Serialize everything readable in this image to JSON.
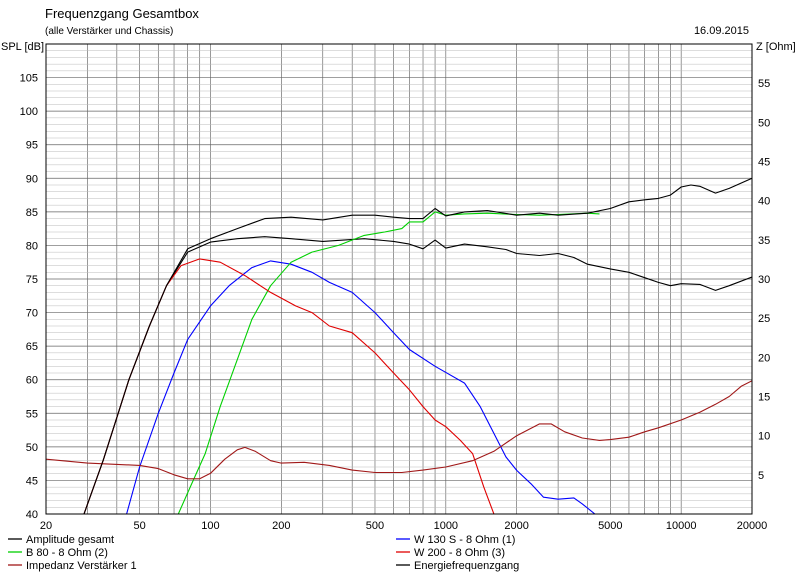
{
  "chart_data": {
    "type": "line",
    "title": "Frequenzgang Gesamtbox",
    "subtitle": "(alle Verstärker und Chassis)",
    "date": "16.09.2015",
    "ylabel_left": "SPL [dB]",
    "ylabel_right": "Z [Ohm]",
    "x_scale": "log",
    "xlim": [
      20,
      20000
    ],
    "ylim_left": [
      40,
      110
    ],
    "ylim_right": [
      0,
      60
    ],
    "x_ticks": [
      {
        "value": 20,
        "label": "20"
      },
      {
        "value": 50,
        "label": "50"
      },
      {
        "value": 100,
        "label": "100"
      },
      {
        "value": 200,
        "label": "200"
      },
      {
        "value": 500,
        "label": "500"
      },
      {
        "value": 1000,
        "label": "1000"
      },
      {
        "value": 2000,
        "label": "2000"
      },
      {
        "value": 5000,
        "label": "5000"
      },
      {
        "value": 10000,
        "label": "10000"
      },
      {
        "value": 20000,
        "label": "20000"
      }
    ],
    "y_ticks_left": [
      40,
      45,
      50,
      55,
      60,
      65,
      70,
      75,
      80,
      85,
      90,
      95,
      100,
      105
    ],
    "y_ticks_right": [
      5,
      10,
      15,
      20,
      25,
      30,
      35,
      40,
      45,
      50,
      55
    ],
    "grid": true,
    "legend_position": "bottom",
    "series": [
      {
        "name": "Amplitude gesamt",
        "color": "#000000",
        "axis": "left",
        "points": [
          [
            20,
            36
          ],
          [
            29,
            40
          ],
          [
            35,
            48
          ],
          [
            45,
            60
          ],
          [
            55,
            68
          ],
          [
            65,
            74
          ],
          [
            80,
            79
          ],
          [
            100,
            80.5
          ],
          [
            130,
            81
          ],
          [
            170,
            81.3
          ],
          [
            220,
            81
          ],
          [
            300,
            80.6
          ],
          [
            450,
            81
          ],
          [
            600,
            80.6
          ],
          [
            700,
            80.2
          ],
          [
            800,
            79.5
          ],
          [
            900,
            80.8
          ],
          [
            1000,
            79.6
          ],
          [
            1200,
            80.2
          ],
          [
            1500,
            79.8
          ],
          [
            1800,
            79.4
          ],
          [
            2000,
            78.8
          ],
          [
            2500,
            78.5
          ],
          [
            3000,
            78.8
          ],
          [
            3500,
            78.2
          ],
          [
            4000,
            77.2
          ],
          [
            5000,
            76.5
          ],
          [
            6000,
            76
          ],
          [
            7000,
            75.2
          ],
          [
            8000,
            74.5
          ],
          [
            9000,
            74
          ],
          [
            10000,
            74.3
          ],
          [
            12000,
            74.2
          ],
          [
            14000,
            73.3
          ],
          [
            16000,
            74
          ],
          [
            20000,
            75.3
          ]
        ]
      },
      {
        "name": "W 130 S - 8 Ohm (1)",
        "color": "#0000ff",
        "axis": "left",
        "points": [
          [
            44,
            40
          ],
          [
            50,
            47
          ],
          [
            60,
            55
          ],
          [
            70,
            61
          ],
          [
            80,
            66
          ],
          [
            100,
            71
          ],
          [
            120,
            74
          ],
          [
            150,
            76.7
          ],
          [
            180,
            77.7
          ],
          [
            220,
            77.2
          ],
          [
            270,
            76
          ],
          [
            320,
            74.5
          ],
          [
            400,
            73
          ],
          [
            500,
            70
          ],
          [
            600,
            67
          ],
          [
            700,
            64.5
          ],
          [
            900,
            62
          ],
          [
            1200,
            59.5
          ],
          [
            1400,
            56
          ],
          [
            1600,
            52
          ],
          [
            1800,
            48.5
          ],
          [
            2000,
            46.5
          ],
          [
            2300,
            44.5
          ],
          [
            2600,
            42.5
          ],
          [
            3000,
            42.2
          ],
          [
            3500,
            42.4
          ],
          [
            3800,
            41.5
          ],
          [
            4300,
            40
          ]
        ]
      },
      {
        "name": "B 80 - 8 Ohm (2)",
        "color": "#00d000",
        "axis": "left",
        "points": [
          [
            73,
            40
          ],
          [
            82,
            44
          ],
          [
            95,
            49
          ],
          [
            110,
            56
          ],
          [
            130,
            63
          ],
          [
            150,
            69
          ],
          [
            180,
            74
          ],
          [
            220,
            77.5
          ],
          [
            270,
            79
          ],
          [
            350,
            80
          ],
          [
            450,
            81.5
          ],
          [
            550,
            82
          ],
          [
            650,
            82.5
          ],
          [
            700,
            83.5
          ],
          [
            800,
            83.5
          ],
          [
            900,
            85
          ],
          [
            1000,
            84.5
          ],
          [
            1200,
            84.7
          ],
          [
            1500,
            84.8
          ],
          [
            2000,
            84.6
          ],
          [
            2500,
            84.5
          ],
          [
            3000,
            84.6
          ],
          [
            4000,
            84.8
          ],
          [
            4500,
            84.7
          ]
        ]
      },
      {
        "name": "W 200 - 8 Ohm (3)",
        "color": "#e00000",
        "axis": "left",
        "points": [
          [
            20,
            36
          ],
          [
            29,
            40
          ],
          [
            35,
            48
          ],
          [
            45,
            60
          ],
          [
            55,
            68
          ],
          [
            65,
            74
          ],
          [
            75,
            77
          ],
          [
            90,
            78
          ],
          [
            110,
            77.5
          ],
          [
            140,
            75.5
          ],
          [
            180,
            73
          ],
          [
            230,
            71
          ],
          [
            270,
            70
          ],
          [
            320,
            68
          ],
          [
            400,
            67
          ],
          [
            500,
            64
          ],
          [
            600,
            61
          ],
          [
            700,
            58.5
          ],
          [
            800,
            56
          ],
          [
            900,
            54
          ],
          [
            1000,
            53
          ],
          [
            1150,
            51
          ],
          [
            1300,
            49
          ],
          [
            1450,
            44
          ],
          [
            1600,
            40
          ]
        ]
      },
      {
        "name": "Impedanz Verstärker 1",
        "color": "#a01818",
        "axis": "right",
        "points": [
          [
            20,
            7
          ],
          [
            30,
            6.5
          ],
          [
            50,
            6.2
          ],
          [
            60,
            5.8
          ],
          [
            70,
            5
          ],
          [
            80,
            4.5
          ],
          [
            90,
            4.5
          ],
          [
            100,
            5.2
          ],
          [
            115,
            7
          ],
          [
            130,
            8.2
          ],
          [
            140,
            8.5
          ],
          [
            155,
            8
          ],
          [
            180,
            6.8
          ],
          [
            200,
            6.5
          ],
          [
            250,
            6.6
          ],
          [
            320,
            6.2
          ],
          [
            400,
            5.6
          ],
          [
            500,
            5.3
          ],
          [
            650,
            5.3
          ],
          [
            800,
            5.6
          ],
          [
            1000,
            6
          ],
          [
            1300,
            6.8
          ],
          [
            1600,
            8
          ],
          [
            2000,
            10
          ],
          [
            2500,
            11.5
          ],
          [
            2800,
            11.5
          ],
          [
            3200,
            10.5
          ],
          [
            3800,
            9.7
          ],
          [
            4500,
            9.4
          ],
          [
            5000,
            9.5
          ],
          [
            6000,
            9.8
          ],
          [
            7000,
            10.5
          ],
          [
            8000,
            11
          ],
          [
            10000,
            12
          ],
          [
            12000,
            13
          ],
          [
            14000,
            14
          ],
          [
            16000,
            15
          ],
          [
            18000,
            16.3
          ],
          [
            20000,
            17
          ]
        ]
      },
      {
        "name": "Energiefrequenzgang",
        "color": "#000000",
        "axis": "left",
        "points": [
          [
            20,
            36
          ],
          [
            29,
            40
          ],
          [
            35,
            48
          ],
          [
            45,
            60
          ],
          [
            55,
            68
          ],
          [
            65,
            74
          ],
          [
            80,
            79.5
          ],
          [
            100,
            81
          ],
          [
            130,
            82.5
          ],
          [
            170,
            84
          ],
          [
            220,
            84.2
          ],
          [
            300,
            83.8
          ],
          [
            400,
            84.5
          ],
          [
            500,
            84.5
          ],
          [
            600,
            84.2
          ],
          [
            700,
            84
          ],
          [
            800,
            84
          ],
          [
            900,
            85.5
          ],
          [
            1000,
            84.4
          ],
          [
            1200,
            85
          ],
          [
            1500,
            85.2
          ],
          [
            2000,
            84.5
          ],
          [
            2500,
            84.8
          ],
          [
            3000,
            84.5
          ],
          [
            4000,
            84.8
          ],
          [
            5000,
            85.5
          ],
          [
            6000,
            86.5
          ],
          [
            7000,
            86.8
          ],
          [
            8000,
            87
          ],
          [
            9000,
            87.5
          ],
          [
            10000,
            88.7
          ],
          [
            11000,
            89
          ],
          [
            12000,
            88.8
          ],
          [
            14000,
            87.8
          ],
          [
            16000,
            88.5
          ],
          [
            20000,
            90
          ]
        ]
      }
    ]
  }
}
